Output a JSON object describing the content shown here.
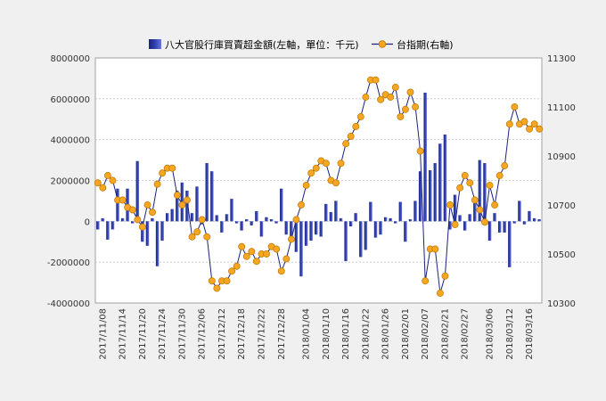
{
  "chart_data": {
    "type": "bar+line",
    "legend": {
      "placement": "top",
      "bar_label": "八大官股行庫買賣超金額(左軸，單位：千元)",
      "line_label": "台指期(右軸)"
    },
    "left_axis": {
      "min": -4000000,
      "max": 8000000,
      "ticks": [
        "8000000",
        "6000000",
        "4000000",
        "2000000",
        "0",
        "-2000000",
        "-4000000"
      ]
    },
    "right_axis": {
      "min": 10300,
      "max": 11300,
      "ticks": [
        "11300",
        "11100",
        "10900",
        "10700",
        "10500",
        "10300"
      ]
    },
    "x_tick_labels": [
      "2017/11/08",
      "2017/11/14",
      "2017/11/20",
      "2017/11/24",
      "2017/11/30",
      "2017/12/06",
      "2017/12/12",
      "2017/12/18",
      "2017/12/22",
      "2017/12/28",
      "2018/01/04",
      "2018/01/10",
      "2018/01/16",
      "2018/01/22",
      "2018/01/26",
      "2018/02/01",
      "2018/02/07",
      "2018/02/21",
      "2018/02/27",
      "2018/03/06",
      "2018/03/12",
      "2018/03/16"
    ],
    "bars": [
      -400000,
      150000,
      -900000,
      -400000,
      1600000,
      150000,
      1600000,
      -100000,
      2950000,
      -1000000,
      -1200000,
      150000,
      -2200000,
      -950000,
      400000,
      600000,
      1500000,
      1900000,
      1500000,
      400000,
      1700000,
      -150000,
      2850000,
      2450000,
      300000,
      -550000,
      350000,
      1100000,
      -100000,
      -450000,
      100000,
      -200000,
      500000,
      -750000,
      200000,
      100000,
      -100000,
      1600000,
      -650000,
      -1000000,
      -1500000,
      -2700000,
      -1200000,
      -950000,
      -650000,
      -750000,
      850000,
      450000,
      1000000,
      150000,
      -1950000,
      -250000,
      400000,
      -1750000,
      -1400000,
      950000,
      -800000,
      -650000,
      200000,
      150000,
      -100000,
      950000,
      -1000000,
      100000,
      1000000,
      2450000,
      6300000,
      2500000,
      2850000,
      3800000,
      4250000,
      -400000,
      1300000,
      300000,
      -450000,
      350000,
      1100000,
      3000000,
      2850000,
      -950000,
      400000,
      -550000,
      -550000,
      -2250000,
      -100000,
      1000000,
      -150000,
      500000,
      150000,
      100000
    ],
    "line": [
      10790,
      10770,
      10820,
      10800,
      10720,
      10720,
      10690,
      10680,
      10640,
      10610,
      10700,
      10670,
      10785,
      10830,
      10850,
      10850,
      10740,
      10700,
      10720,
      10570,
      10590,
      10640,
      10570,
      10390,
      10360,
      10390,
      10390,
      10430,
      10450,
      10530,
      10490,
      10510,
      10470,
      10500,
      10500,
      10530,
      10520,
      10430,
      10480,
      10560,
      10640,
      10700,
      10780,
      10830,
      10850,
      10880,
      10870,
      10800,
      10790,
      10870,
      10950,
      10980,
      11020,
      11060,
      11140,
      11210,
      11210,
      11130,
      11150,
      11140,
      11180,
      11060,
      11090,
      11160,
      11100,
      10920,
      10390,
      10520,
      10520,
      10340,
      10410,
      10700,
      10620,
      10770,
      10820,
      10790,
      10720,
      10680,
      10630,
      10780,
      10700,
      10820,
      10860,
      11030,
      11100,
      11030,
      11040,
      11010,
      11030,
      11010
    ]
  }
}
